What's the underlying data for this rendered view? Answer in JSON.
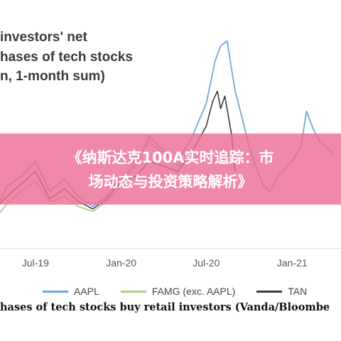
{
  "chart_data": {
    "type": "line",
    "title": [
      "investors' net",
      "hases of tech stocks",
      "n, 1-month sum)"
    ],
    "x_ticks": [
      "Jul-19",
      "Jan-20",
      "Jul-20",
      "Jan-21"
    ],
    "series": [
      {
        "name": "AAPL",
        "color": "#6fa8dc",
        "points": [
          [
            "2019-04",
            0.3
          ],
          [
            "2019-05",
            0.42
          ],
          [
            "2019-06",
            0.46
          ],
          [
            "2019-07",
            0.52
          ],
          [
            "2019-08",
            0.4
          ],
          [
            "2019-09",
            0.45
          ],
          [
            "2019-10",
            0.38
          ],
          [
            "2019-11",
            0.34
          ],
          [
            "2019-12",
            0.38
          ],
          [
            "2020-01",
            0.46
          ],
          [
            "2020-02",
            0.5
          ],
          [
            "2020-03",
            0.62
          ],
          [
            "2020-04",
            0.56
          ],
          [
            "2020-05",
            0.52
          ],
          [
            "2020-06",
            0.62
          ],
          [
            "2020-07",
            0.75
          ],
          [
            "2020-07-20",
            0.92
          ],
          [
            "2020-08",
            0.98
          ],
          [
            "2020-08-15",
            1.0
          ],
          [
            "2020-08-25",
            0.88
          ],
          [
            "2020-09",
            0.8
          ],
          [
            "2020-09-15",
            0.7
          ],
          [
            "2020-10",
            0.58
          ],
          [
            "2020-10-15",
            0.5
          ],
          [
            "2020-11",
            0.42
          ],
          [
            "2020-11-15",
            0.4
          ],
          [
            "2020-12",
            0.46
          ],
          [
            "2021-01",
            0.52
          ],
          [
            "2021-01-20",
            0.58
          ],
          [
            "2021-02",
            0.72
          ],
          [
            "2021-02-15",
            0.65
          ],
          [
            "2021-03",
            0.6
          ],
          [
            "2021-04",
            0.55
          ]
        ]
      },
      {
        "name": "FAMG (exc. AAPL)",
        "color": "#a9d18e",
        "points": [
          [
            "2019-04",
            0.28
          ],
          [
            "2019-05",
            0.35
          ],
          [
            "2019-06",
            0.4
          ],
          [
            "2019-07",
            0.44
          ],
          [
            "2019-08",
            0.36
          ],
          [
            "2019-09",
            0.38
          ],
          [
            "2019-10",
            0.34
          ],
          [
            "2019-11",
            0.32
          ],
          [
            "2019-12",
            0.36
          ],
          [
            "2020-01",
            0.42
          ],
          [
            "2020-02",
            0.52
          ],
          [
            "2020-03",
            0.6
          ],
          [
            "2020-04",
            0.55
          ],
          [
            "2020-05",
            0.5
          ],
          [
            "2020-06",
            0.53
          ],
          [
            "2020-07",
            0.56
          ]
        ]
      },
      {
        "name": "TAN",
        "color": "#3b3b3b",
        "points": [
          [
            "2019-04",
            0.32
          ],
          [
            "2019-05",
            0.38
          ],
          [
            "2019-06",
            0.43
          ],
          [
            "2019-07",
            0.48
          ],
          [
            "2019-08",
            0.37
          ],
          [
            "2019-09",
            0.41
          ],
          [
            "2019-10",
            0.36
          ],
          [
            "2019-11",
            0.33
          ],
          [
            "2019-12",
            0.37
          ],
          [
            "2020-01",
            0.44
          ],
          [
            "2020-02",
            0.46
          ],
          [
            "2020-03",
            0.52
          ],
          [
            "2020-04",
            0.5
          ],
          [
            "2020-05",
            0.48
          ],
          [
            "2020-06",
            0.56
          ],
          [
            "2020-07",
            0.66
          ],
          [
            "2020-07-15",
            0.76
          ],
          [
            "2020-07-25",
            0.8
          ],
          [
            "2020-08",
            0.73
          ],
          [
            "2020-08-10",
            0.78
          ],
          [
            "2020-08-25",
            0.62
          ],
          [
            "2020-09",
            0.48
          ]
        ]
      }
    ],
    "x_range": [
      "2019-04",
      "2021-05"
    ],
    "y_range": [
      0.2,
      1.05
    ],
    "grid": false,
    "legend_position": "bottom"
  },
  "caption": "hases of tech stocks buy retail investors (Vanda/Bloombe",
  "banner": {
    "line1": "《纳斯达克100A实时追踪：市",
    "line2": "场动态与投资策略解析》"
  }
}
